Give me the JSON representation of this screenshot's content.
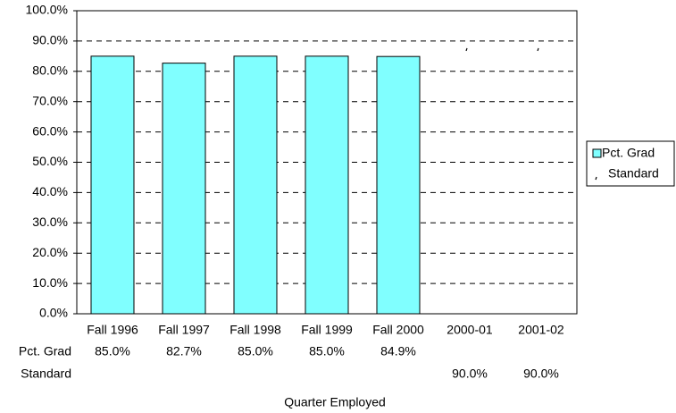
{
  "chart_data": {
    "type": "bar",
    "x_label": "Quarter Employed",
    "categories": [
      "Fall 1996",
      "Fall 1997",
      "Fall 1998",
      "Fall 1999",
      "Fall 2000",
      "2000-01",
      "2001-02"
    ],
    "series": [
      {
        "name": "Pct. Grad",
        "type": "bar",
        "color": "#80ffff",
        "values": [
          85.0,
          82.7,
          85.0,
          85.0,
          84.9,
          null,
          null
        ],
        "value_labels": [
          "85.0%",
          "82.7%",
          "85.0%",
          "85.0%",
          "84.9%",
          null,
          null
        ]
      },
      {
        "name": "Standard",
        "type": "marker",
        "color": "#000000",
        "values": [
          null,
          null,
          null,
          null,
          null,
          90.0,
          90.0
        ],
        "value_labels": [
          null,
          null,
          null,
          null,
          null,
          "90.0%",
          "90.0%"
        ]
      }
    ],
    "ylim": [
      0,
      100
    ],
    "yticks": [
      {
        "value": 0,
        "label": "0.0%"
      },
      {
        "value": 10,
        "label": "10.0%"
      },
      {
        "value": 20,
        "label": "20.0%"
      },
      {
        "value": 30,
        "label": "30.0%"
      },
      {
        "value": 40,
        "label": "40.0%"
      },
      {
        "value": 50,
        "label": "50.0%"
      },
      {
        "value": 60,
        "label": "60.0%"
      },
      {
        "value": 70,
        "label": "70.0%"
      },
      {
        "value": 80,
        "label": "80.0%"
      },
      {
        "value": 90,
        "label": "90.0%"
      },
      {
        "value": 100,
        "label": "100.0%"
      }
    ],
    "grid": true,
    "legend": "right"
  }
}
